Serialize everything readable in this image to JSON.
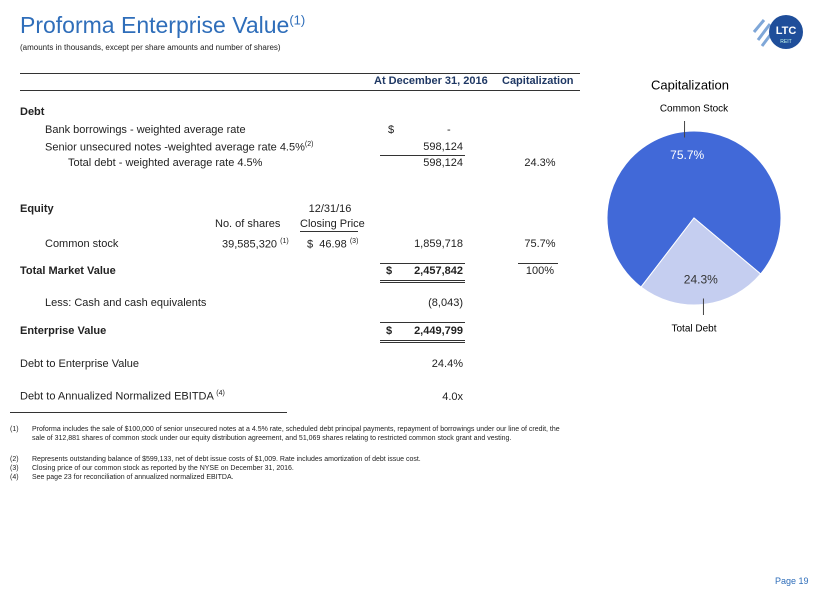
{
  "header": {
    "title": "Proforma Enterprise Value",
    "title_note": "(1)",
    "subtitle": "(amounts in thousands, except per share amounts and number of shares)"
  },
  "logo": {
    "text": "LTC",
    "subtext": "REIT"
  },
  "table": {
    "columns": [
      "At December 31, 2016",
      "Capitalization"
    ],
    "debt": {
      "label": "Debt",
      "bank": {
        "label": "Bank borrowings - weighted average rate",
        "currency": "$",
        "amount": "-"
      },
      "senior": {
        "label": "Senior unsecured notes -weighted average rate 4.5%",
        "note": "(2)",
        "amount": "598,124"
      },
      "total": {
        "label": "Total debt - weighted average rate 4.5%",
        "amount": "598,124",
        "pct": "24.3%"
      }
    },
    "equity": {
      "label": "Equity",
      "shares_header": "No. of shares",
      "price_date": "12/31/16",
      "price_header": "Closing Price",
      "common": {
        "label": "Common stock",
        "shares": "39,585,320",
        "shares_note": "(1)",
        "currency": "$",
        "price": "46.98",
        "price_note": "(3)",
        "amount": "1,859,718",
        "pct": "75.7%"
      }
    },
    "market": {
      "label": "Total Market Value",
      "currency": "$",
      "amount": "2,457,842",
      "pct": "100%"
    },
    "cash": {
      "label": "Less:  Cash and cash equivalents",
      "amount": "(8,043)"
    },
    "ev": {
      "label": "Enterprise Value",
      "currency": "$",
      "amount": "2,449,799"
    },
    "debt_ev": {
      "label": "Debt to Enterprise Value",
      "value": "24.4%"
    },
    "debt_ebitda": {
      "label": "Debt to Annualized Normalized EBITDA",
      "note": "(4)",
      "value": "4.0x"
    }
  },
  "footnotes": [
    {
      "marker": "(1)",
      "text": "Proforma includes the sale of $100,000 of senior unsecured notes at a 4.5% rate, scheduled debt principal payments, repayment of borrowings under our line of credit, the sale of 312,881 shares of common stock under our equity distribution agreement, and 51,069 shares relating to restricted common stock grant and vesting."
    },
    {
      "marker": "(2)",
      "text": "Represents outstanding balance of $599,133, net of debt issue costs of $1,009.  Rate includes amortization of debt issue cost."
    },
    {
      "marker": "(3)",
      "text": "Closing price of our common stock as reported by the NYSE on December 31, 2016."
    },
    {
      "marker": "(4)",
      "text": "See page 23 for reconciliation of annualized normalized EBITDA."
    }
  ],
  "page": "Page 19",
  "chart_data": {
    "type": "pie",
    "title": "Capitalization",
    "categories": [
      "Common Stock",
      "Total Debt"
    ],
    "values": [
      75.7,
      24.3
    ],
    "value_labels": [
      "75.7%",
      "24.3%"
    ],
    "colors": [
      "#4169d8",
      "#c5cef0"
    ]
  }
}
